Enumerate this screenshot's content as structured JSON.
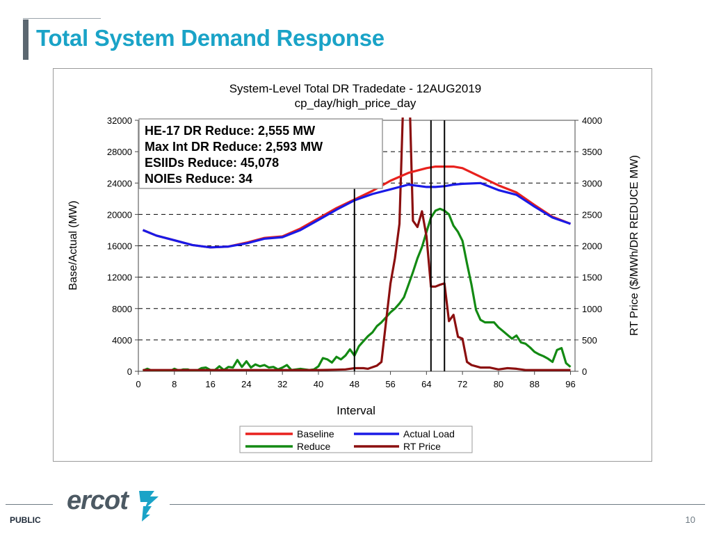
{
  "slide": {
    "title": "Total System Demand Response",
    "footer_label": "PUBLIC",
    "page_number": "10",
    "logo_text": "ercot"
  },
  "colors": {
    "title": "#1aa3c7",
    "baseline": "#e8211d",
    "actual_load": "#1a1ae6",
    "reduce": "#138a13",
    "rt_price": "#8b0f0f"
  },
  "chart_data": {
    "type": "line",
    "title": "System-Level Total DR  Tradedate - 12AUG2019",
    "subtitle": "cp_day/high_price_day",
    "xlabel": "Interval",
    "ylabel": "Base/Actual (MW)",
    "y2label": "RT Price ($/MWh/DR REDUCE MW)",
    "xlim": [
      0,
      97
    ],
    "ylim": [
      0,
      32000
    ],
    "y2lim": [
      0,
      4000
    ],
    "x_ticks": [
      0,
      8,
      16,
      24,
      32,
      40,
      48,
      56,
      64,
      72,
      80,
      88,
      96
    ],
    "y_ticks": [
      0,
      4000,
      8000,
      12000,
      16000,
      20000,
      24000,
      28000,
      32000
    ],
    "y2_ticks": [
      0,
      500,
      1000,
      1500,
      2000,
      2500,
      3000,
      3500,
      4000
    ],
    "gridlines": "horizontal dashed",
    "vertical_markers": [
      48,
      65,
      68
    ],
    "annotation_lines": [
      "HE-17 DR Reduce: 2,555 MW",
      "Max Int DR Reduce: 2,593 MW",
      "ESIIDs Reduce: 45,078",
      "NOIEs Reduce: 34"
    ],
    "legend": [
      "Baseline",
      "Actual Load",
      "Reduce",
      "RT Price"
    ],
    "legend_position": "bottom",
    "series": [
      {
        "name": "Baseline",
        "axis": "left",
        "x": [
          1,
          4,
          8,
          12,
          16,
          20,
          24,
          28,
          32,
          36,
          40,
          44,
          48,
          52,
          56,
          60,
          64,
          66,
          68,
          70,
          72,
          76,
          80,
          84,
          88,
          92,
          96
        ],
        "values": [
          18000,
          17300,
          16700,
          16100,
          15800,
          15900,
          16400,
          17000,
          17200,
          18200,
          19500,
          20800,
          21900,
          23000,
          24300,
          25300,
          25900,
          26100,
          26100,
          26100,
          25900,
          24800,
          23700,
          22800,
          21200,
          19700,
          18800
        ]
      },
      {
        "name": "Actual Load",
        "axis": "left",
        "x": [
          1,
          4,
          8,
          12,
          16,
          20,
          24,
          28,
          32,
          36,
          40,
          44,
          48,
          52,
          56,
          60,
          64,
          66,
          68,
          70,
          72,
          76,
          80,
          84,
          88,
          92,
          96
        ],
        "values": [
          18000,
          17300,
          16700,
          16100,
          15800,
          15900,
          16300,
          16900,
          17100,
          18000,
          19300,
          20600,
          21800,
          22600,
          23200,
          23800,
          23500,
          23500,
          23600,
          23800,
          23900,
          24000,
          23100,
          22500,
          21000,
          19600,
          18800
        ]
      },
      {
        "name": "Reduce",
        "axis": "right",
        "x": [
          1,
          2,
          3,
          4,
          5,
          6,
          7,
          8,
          9,
          10,
          11,
          12,
          13,
          14,
          15,
          16,
          17,
          18,
          19,
          20,
          21,
          22,
          23,
          24,
          25,
          26,
          27,
          28,
          29,
          30,
          31,
          32,
          33,
          34,
          35,
          36,
          37,
          38,
          39,
          40,
          41,
          42,
          43,
          44,
          45,
          46,
          47,
          48,
          49,
          50,
          51,
          52,
          53,
          54,
          55,
          56,
          57,
          58,
          59,
          60,
          61,
          62,
          63,
          64,
          65,
          66,
          67,
          68,
          69,
          70,
          71,
          72,
          73,
          74,
          75,
          76,
          77,
          78,
          79,
          80,
          81,
          82,
          83,
          84,
          85,
          86,
          87,
          88,
          89,
          90,
          91,
          92,
          93,
          94,
          95,
          96
        ],
        "values": [
          10,
          40,
          10,
          0,
          0,
          10,
          0,
          40,
          10,
          30,
          30,
          0,
          10,
          50,
          60,
          20,
          20,
          80,
          20,
          70,
          60,
          180,
          70,
          160,
          60,
          110,
          80,
          100,
          60,
          70,
          30,
          60,
          100,
          20,
          30,
          40,
          30,
          20,
          30,
          80,
          210,
          190,
          140,
          230,
          190,
          250,
          350,
          250,
          400,
          480,
          560,
          620,
          720,
          780,
          860,
          940,
          1000,
          1080,
          1180,
          1380,
          1580,
          1800,
          1980,
          2220,
          2450,
          2560,
          2590,
          2560,
          2500,
          2320,
          2220,
          2080,
          1720,
          1380,
          980,
          820,
          780,
          780,
          780,
          700,
          640,
          580,
          520,
          570,
          460,
          440,
          380,
          310,
          270,
          240,
          200,
          150,
          340,
          370,
          130,
          70
        ]
      },
      {
        "name": "RT Price",
        "axis": "right",
        "x": [
          1,
          4,
          8,
          12,
          16,
          20,
          24,
          28,
          32,
          36,
          40,
          44,
          46,
          48,
          50,
          51,
          53,
          54,
          55,
          56,
          57,
          58,
          59,
          60,
          61,
          62,
          63,
          64,
          65,
          66,
          67,
          68,
          69,
          70,
          71,
          72,
          73,
          74,
          75,
          76,
          78,
          80,
          82,
          84,
          86,
          88,
          92,
          96
        ],
        "values": [
          20,
          20,
          20,
          20,
          20,
          20,
          20,
          20,
          20,
          20,
          20,
          25,
          30,
          50,
          50,
          40,
          90,
          150,
          780,
          1400,
          1800,
          2350,
          4700,
          5000,
          2400,
          2300,
          2550,
          2150,
          1350,
          1350,
          1380,
          1400,
          800,
          900,
          550,
          520,
          150,
          100,
          80,
          60,
          60,
          30,
          50,
          40,
          20,
          20,
          20,
          20
        ]
      }
    ]
  }
}
